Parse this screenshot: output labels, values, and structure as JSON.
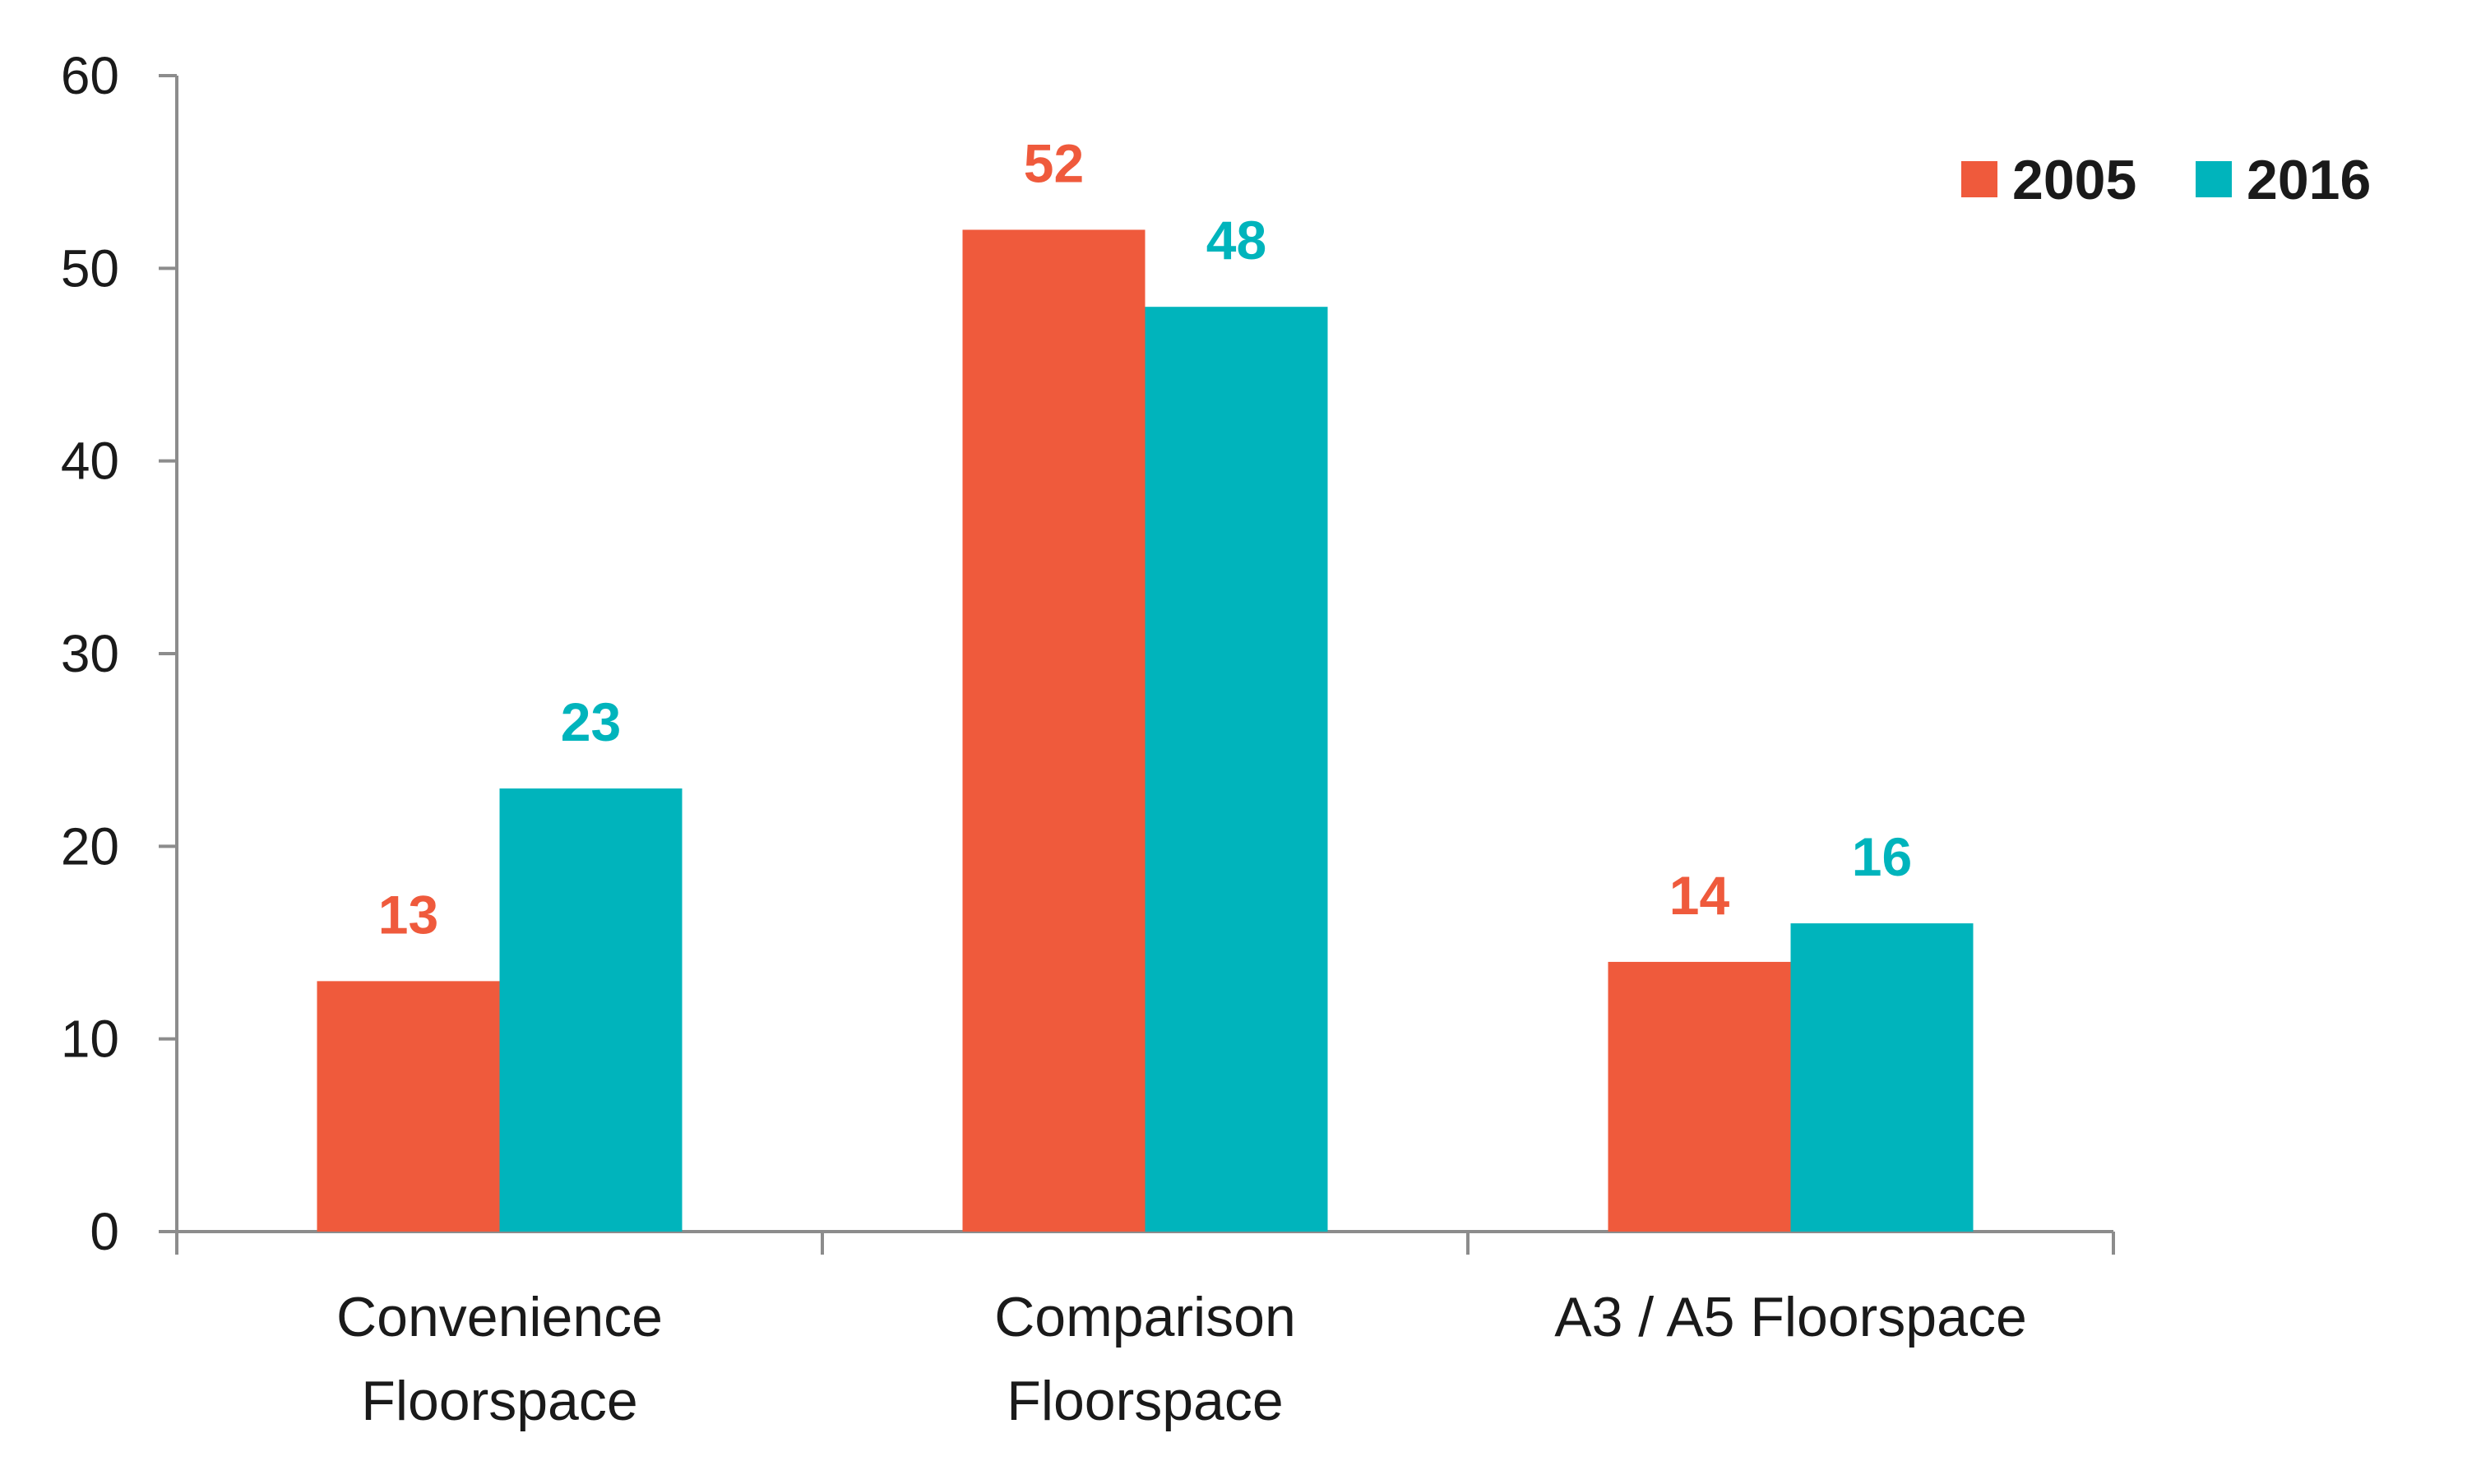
{
  "chart_data": {
    "type": "bar",
    "categories": [
      [
        "Convenience",
        "Floorspace"
      ],
      [
        "Comparison",
        "Floorspace"
      ],
      [
        "A3 / A5 Floorspace"
      ]
    ],
    "series": [
      {
        "name": "2005",
        "color": "#ef5a3c",
        "values": [
          13,
          52,
          14
        ]
      },
      {
        "name": "2016",
        "color": "#00b4bc",
        "values": [
          23,
          48,
          16
        ]
      }
    ],
    "yticks": [
      "0",
      "10",
      "20",
      "30",
      "40",
      "50",
      "60"
    ],
    "ylim": [
      0,
      60
    ],
    "grid": false,
    "legend_position": "top-right",
    "axis_color": "#8c8c8c"
  }
}
